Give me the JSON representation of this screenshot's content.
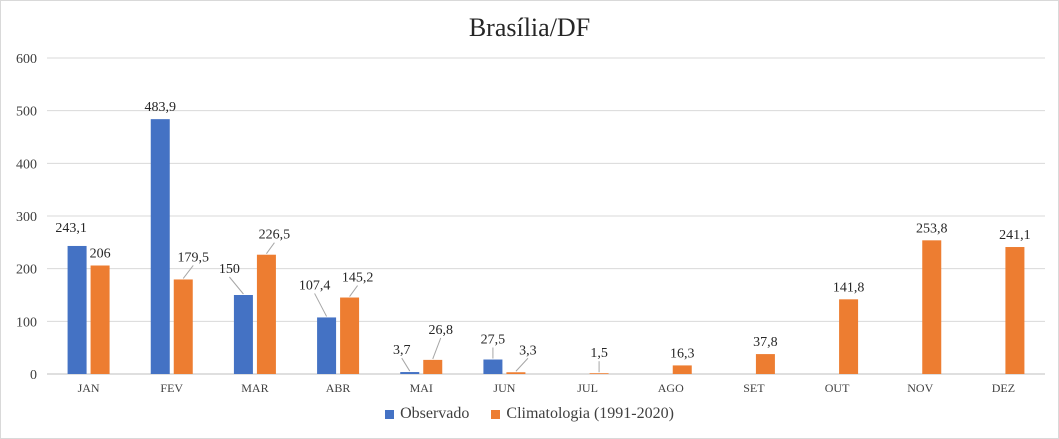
{
  "chart_data": {
    "type": "bar",
    "title": "Brasília/DF",
    "categories": [
      "JAN",
      "FEV",
      "MAR",
      "ABR",
      "MAI",
      "JUN",
      "JUL",
      "AGO",
      "SET",
      "OUT",
      "NOV",
      "DEZ"
    ],
    "ylim": [
      0,
      600
    ],
    "yticks": [
      "0",
      "100",
      "200",
      "300",
      "400",
      "500",
      "600"
    ],
    "grid": true,
    "legend_position": "bottom",
    "series": [
      {
        "name": "Observado",
        "color": "#4472C4",
        "values": [
          243.1,
          483.9,
          150,
          107.4,
          3.7,
          27.5,
          null,
          null,
          null,
          null,
          null,
          null
        ],
        "labels": [
          "243,1",
          "483,9",
          "150",
          "107,4",
          "3,7",
          "27,5",
          "",
          "",
          "",
          "",
          "",
          ""
        ]
      },
      {
        "name": "Climatologia (1991-2020)",
        "color": "#ED7D31",
        "values": [
          206,
          179.5,
          226.5,
          145.2,
          26.8,
          3.3,
          1.5,
          16.3,
          37.8,
          141.8,
          253.8,
          241.1
        ],
        "labels": [
          "206",
          "179,5",
          "226,5",
          "145,2",
          "26,8",
          "3,3",
          "1,5",
          "16,3",
          "37,8",
          "141,8",
          "253,8",
          "241,1"
        ]
      }
    ]
  }
}
